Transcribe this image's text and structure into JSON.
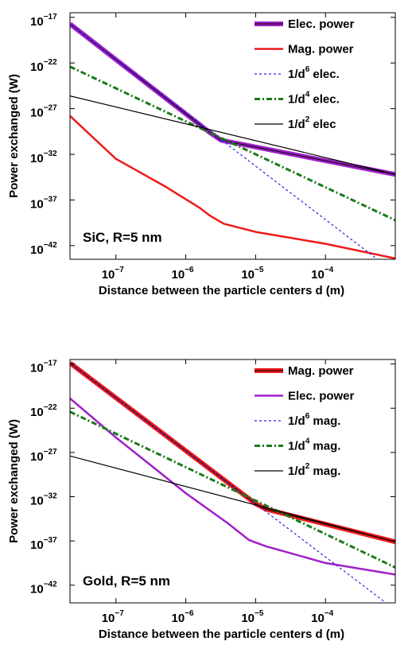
{
  "chart_data": [
    {
      "type": "line",
      "annotation": "SiC, R=5 nm",
      "xlabel": "Distance between the particle centers d (m)",
      "ylabel": "Power exchanged (W)",
      "xscale": "log",
      "yscale": "log",
      "xlim": [
        2.2e-08,
        0.001
      ],
      "ylim": [
        3.2e-44,
        3.2e-17
      ],
      "x_ticks": [
        {
          "value": 1e-07,
          "base": "10",
          "exp": "−7"
        },
        {
          "value": 1e-06,
          "base": "10",
          "exp": "−6"
        },
        {
          "value": 1e-05,
          "base": "10",
          "exp": "−5"
        },
        {
          "value": 0.0001,
          "base": "10",
          "exp": "−4"
        }
      ],
      "y_ticks": [
        {
          "value": 1e-17,
          "base": "10",
          "exp": "−17"
        },
        {
          "value": 1e-22,
          "base": "10",
          "exp": "−22"
        },
        {
          "value": 1e-27,
          "base": "10",
          "exp": "−27"
        },
        {
          "value": 1e-32,
          "base": "10",
          "exp": "−32"
        },
        {
          "value": 1e-37,
          "base": "10",
          "exp": "−37"
        },
        {
          "value": 1e-42,
          "base": "10",
          "exp": "−42"
        }
      ],
      "legend_position": "top-right",
      "series": [
        {
          "name": "Elec. power",
          "color": "#a020c8",
          "width": 6,
          "dash": "",
          "x": [
            2.2e-08,
            2.2e-06,
            3.2e-06,
            0.001
          ],
          "y": [
            1.9e-18,
            2.5e-30,
            3.5e-31,
            6.3e-35
          ]
        },
        {
          "name": "Mag. power",
          "color": "#ee1a1a",
          "width": 2.5,
          "dash": "",
          "x": [
            2.2e-08,
            1e-07,
            5e-07,
            1.6e-06,
            2.2e-06,
            3.5e-06,
            1e-05,
            0.0001,
            0.001
          ],
          "y": [
            1.6e-28,
            3.2e-33,
            3.2e-36,
            1.3e-38,
            2e-39,
            2.5e-40,
            3.2e-41,
            1.6e-42,
            4e-44
          ]
        },
        {
          "name": "1/d",
          "legend_exp": "6",
          "legend_suffix": " elec.",
          "color": "#2222ee",
          "width": 1.2,
          "dash": "3,3",
          "x": [
            2.2e-08,
            0.001
          ],
          "y": [
            1.9e-18,
            1e-45
          ]
        },
        {
          "name": "1/d",
          "legend_exp": "4",
          "legend_suffix": " elec.",
          "color": "#1a7a1a",
          "width": 3,
          "dash": "7,3,2,3",
          "x": [
            2.2e-08,
            0.001
          ],
          "y": [
            4e-23,
            6e-40
          ]
        },
        {
          "name": "1/d",
          "legend_exp": "2",
          "legend_suffix": " elec",
          "color": "#000000",
          "width": 1.2,
          "dash": "",
          "x": [
            2.2e-08,
            0.001
          ],
          "y": [
            2.5e-26,
            6.3e-35
          ]
        }
      ]
    },
    {
      "type": "line",
      "annotation": "Gold, R=5 nm",
      "xlabel": "Distance between the particle centers d (m)",
      "ylabel": "Power exchanged (W)",
      "xscale": "log",
      "yscale": "log",
      "xlim": [
        2.2e-08,
        0.001
      ],
      "ylim": [
        1e-44,
        3.2e-17
      ],
      "x_ticks": [
        {
          "value": 1e-07,
          "base": "10",
          "exp": "−7"
        },
        {
          "value": 1e-06,
          "base": "10",
          "exp": "−6"
        },
        {
          "value": 1e-05,
          "base": "10",
          "exp": "−5"
        },
        {
          "value": 0.0001,
          "base": "10",
          "exp": "−4"
        }
      ],
      "y_ticks": [
        {
          "value": 1e-17,
          "base": "10",
          "exp": "−17"
        },
        {
          "value": 1e-22,
          "base": "10",
          "exp": "−22"
        },
        {
          "value": 1e-27,
          "base": "10",
          "exp": "−27"
        },
        {
          "value": 1e-32,
          "base": "10",
          "exp": "−32"
        },
        {
          "value": 1e-37,
          "base": "10",
          "exp": "−37"
        },
        {
          "value": 1e-42,
          "base": "10",
          "exp": "−42"
        }
      ],
      "legend_position": "top-right",
      "series": [
        {
          "name": "Mag. power",
          "color": "#ee1a1a",
          "width": 6,
          "dash": "",
          "x": [
            2.2e-08,
            1e-05,
            1.4e-05,
            0.001
          ],
          "y": [
            1.3e-17,
            1.6e-33,
            4e-34,
            8e-38
          ]
        },
        {
          "name": "Elec. power",
          "color": "#a020c8",
          "width": 2.5,
          "dash": "",
          "x": [
            2.2e-08,
            1e-07,
            1e-06,
            4e-06,
            8e-06,
            1.4e-05,
            0.0001,
            0.001
          ],
          "y": [
            1.3e-21,
            5e-26,
            2.5e-32,
            1e-35,
            1.3e-37,
            2.5e-38,
            3.2e-40,
            1.6e-41
          ]
        },
        {
          "name": "1/d",
          "legend_exp": "6",
          "legend_suffix": " mag.",
          "color": "#2222ee",
          "width": 1.2,
          "dash": "3,3",
          "x": [
            2.2e-08,
            0.001
          ],
          "y": [
            1.3e-17,
            1.6e-45
          ]
        },
        {
          "name": "1/d",
          "legend_exp": "4",
          "legend_suffix": " mag.",
          "color": "#1a7a1a",
          "width": 3,
          "dash": "7,3,2,3",
          "x": [
            2.2e-08,
            0.001
          ],
          "y": [
            4e-23,
            1e-40
          ]
        },
        {
          "name": "1/d",
          "legend_exp": "2",
          "legend_suffix": " mag.",
          "color": "#000000",
          "width": 1.2,
          "dash": "",
          "x": [
            2.2e-08,
            0.001
          ],
          "y": [
            4e-28,
            8e-38
          ]
        }
      ]
    }
  ]
}
